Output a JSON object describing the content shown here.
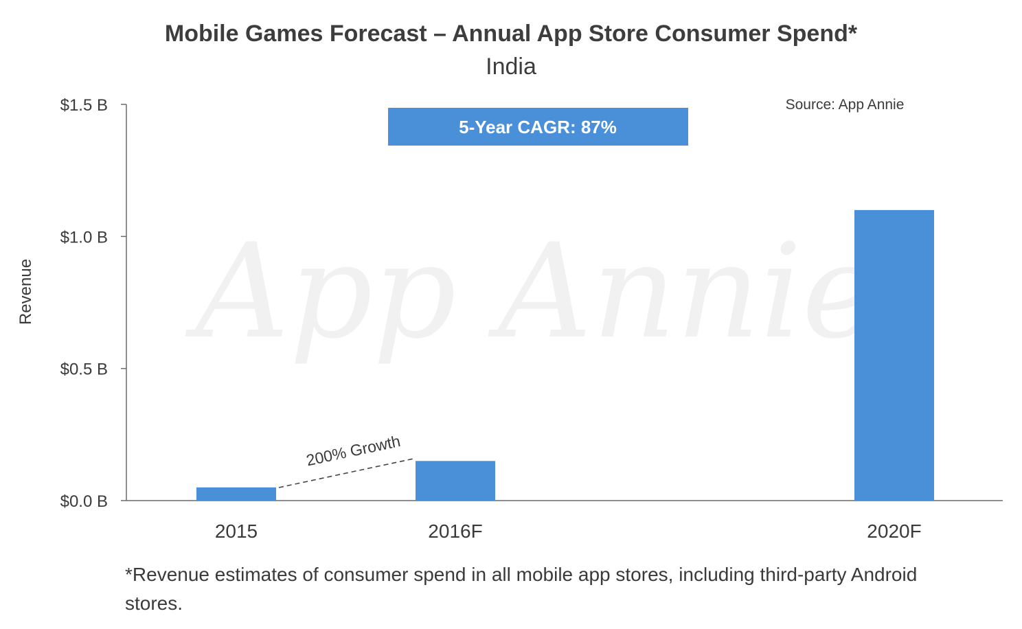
{
  "chart_data": {
    "type": "bar",
    "title": "Mobile Games Forecast – Annual App Store Consumer Spend*",
    "subtitle": "India",
    "ylabel": "Revenue",
    "xlabel": "",
    "categories": [
      "2015",
      "2016F",
      "2020F"
    ],
    "values": [
      0.05,
      0.15,
      1.1
    ],
    "unit": "billion USD",
    "ylim": [
      0,
      1.5
    ],
    "yticks": [
      0,
      0.5,
      1.0,
      1.5
    ],
    "ytick_labels": [
      "$0.0 B",
      "$0.5 B",
      "$1.0 B",
      "$1.5 B"
    ],
    "bar_color": "#4a90d9",
    "annotations": {
      "cagr": "5-Year CAGR: 87%",
      "growth": "200% Growth",
      "source": "Source: App Annie",
      "watermark": "App Annie"
    },
    "footnote": "*Revenue estimates of consumer spend in all mobile app stores, including third-party Android stores."
  }
}
